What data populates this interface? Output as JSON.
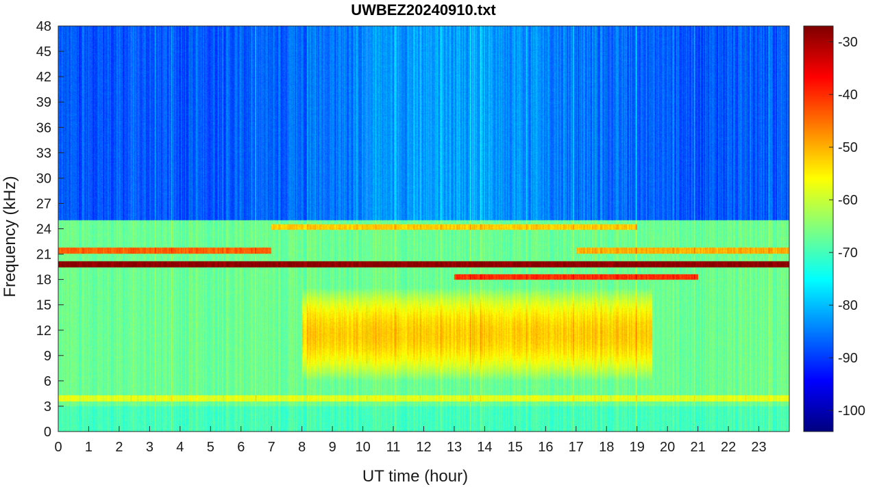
{
  "chart_data": {
    "type": "heatmap",
    "title": "UWBEZ20240910.txt",
    "xlabel": "UT time (hour)",
    "ylabel": "Frequency (kHz)",
    "xlim": [
      0,
      24
    ],
    "ylim": [
      0,
      48
    ],
    "x_ticks": [
      0,
      1,
      2,
      3,
      4,
      5,
      6,
      7,
      8,
      9,
      10,
      11,
      12,
      13,
      14,
      15,
      16,
      17,
      18,
      19,
      20,
      21,
      22,
      23
    ],
    "y_ticks": [
      0,
      3,
      6,
      9,
      12,
      15,
      18,
      21,
      24,
      27,
      30,
      33,
      36,
      39,
      42,
      45,
      48
    ],
    "colorbar": {
      "colormap": "jet",
      "clim": [
        -104,
        -27
      ],
      "ticks": [
        -100,
        -90,
        -80,
        -70,
        -60,
        -50,
        -40,
        -30
      ]
    },
    "features": [
      {
        "type": "narrowband",
        "freq_khz": 19.8,
        "t_start": 0,
        "t_end": 24,
        "level_db": -28
      },
      {
        "type": "narrowband",
        "freq_khz": 21.4,
        "t_start": 0,
        "t_end": 7,
        "level_db": -44
      },
      {
        "type": "narrowband",
        "freq_khz": 21.4,
        "t_start": 17,
        "t_end": 24,
        "level_db": -50
      },
      {
        "type": "narrowband",
        "freq_khz": 18.3,
        "t_start": 13,
        "t_end": 21,
        "level_db": -40
      },
      {
        "type": "narrowband",
        "freq_khz": 24.2,
        "t_start": 7,
        "t_end": 19,
        "level_db": -52
      },
      {
        "type": "narrowband",
        "freq_khz": 3.9,
        "t_start": 0,
        "t_end": 24,
        "level_db": -58
      },
      {
        "type": "broadband_region",
        "freq_range_khz": [
          6,
          17
        ],
        "t_range": [
          8,
          19.5
        ],
        "level_db": -52
      },
      {
        "type": "background_high_freq",
        "freq_range_khz": [
          25,
          48
        ],
        "t_range": [
          0,
          24
        ],
        "level_db": -88
      }
    ]
  }
}
